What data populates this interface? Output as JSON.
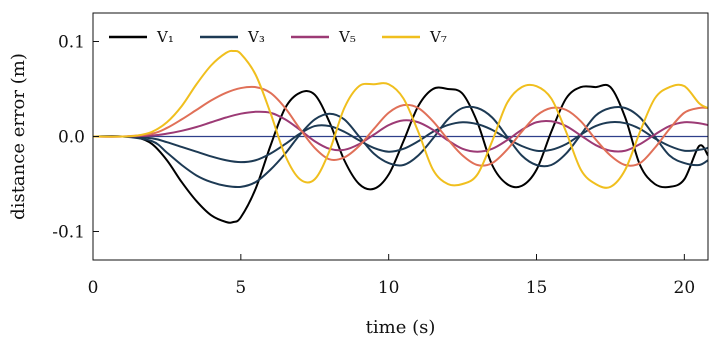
{
  "chart_data": {
    "type": "line",
    "xlabel": "time (s)",
    "ylabel": "distance error (m)",
    "xlim": [
      0,
      20.8
    ],
    "ylim": [
      -0.13,
      0.13
    ],
    "x_ticks": [
      0,
      5,
      10,
      15,
      20
    ],
    "x_tick_labels": [
      "0",
      "5",
      "10",
      "15",
      "20"
    ],
    "y_ticks": [
      -0.1,
      0.0,
      0.1
    ],
    "y_tick_labels": [
      "-0.1",
      "0.0",
      "0.1"
    ],
    "grid": false,
    "legend": {
      "placement": "top-left",
      "orientation": "horizontal"
    },
    "reference_line": {
      "y": 0,
      "color": "#2e3f8a"
    },
    "series": [
      {
        "name": "V₁",
        "color": "#000000",
        "in_legend": true,
        "x": [
          0,
          1,
          1.5,
          2,
          2.5,
          3,
          3.5,
          4,
          4.5,
          4.75,
          5,
          5.5,
          6,
          6.5,
          7,
          7.5,
          8,
          8.5,
          9,
          9.5,
          10,
          10.5,
          11,
          11.5,
          12,
          12.5,
          13,
          13.5,
          14,
          14.5,
          15,
          15.5,
          16,
          16.5,
          17,
          17.5,
          18,
          18.5,
          19,
          19.5,
          20,
          20.5,
          20.8
        ],
        "y": [
          0,
          0,
          -0.001,
          -0.008,
          -0.025,
          -0.048,
          -0.068,
          -0.083,
          -0.09,
          -0.09,
          -0.085,
          -0.055,
          -0.01,
          0.03,
          0.046,
          0.044,
          0.015,
          -0.025,
          -0.05,
          -0.055,
          -0.04,
          -0.005,
          0.032,
          0.05,
          0.05,
          0.045,
          0.015,
          -0.03,
          -0.05,
          -0.052,
          -0.035,
          0.005,
          0.04,
          0.052,
          0.052,
          0.052,
          0.02,
          -0.03,
          -0.05,
          -0.053,
          -0.045,
          -0.01,
          -0.02
        ]
      },
      {
        "name": "",
        "color": "#1d3a54",
        "in_legend": false,
        "x": [
          0,
          1,
          2,
          2.5,
          3,
          3.5,
          4,
          4.5,
          5,
          5.5,
          6,
          6.5,
          7,
          7.5,
          8,
          8.5,
          9,
          9.5,
          10,
          10.5,
          11,
          11.5,
          12,
          12.5,
          13,
          13.5,
          14,
          14.5,
          15,
          15.5,
          16,
          16.5,
          17,
          17.5,
          18,
          18.5,
          19,
          19.5,
          20,
          20.5,
          20.8
        ],
        "y": [
          0,
          0,
          -0.005,
          -0.017,
          -0.03,
          -0.041,
          -0.048,
          -0.052,
          -0.053,
          -0.048,
          -0.035,
          -0.018,
          0.002,
          0.018,
          0.024,
          0.018,
          0,
          -0.018,
          -0.028,
          -0.03,
          -0.02,
          -0.002,
          0.018,
          0.03,
          0.03,
          0.02,
          0,
          -0.02,
          -0.03,
          -0.03,
          -0.018,
          0.002,
          0.022,
          0.03,
          0.03,
          0.02,
          0,
          -0.02,
          -0.028,
          -0.03,
          -0.025
        ]
      },
      {
        "name": "V₃",
        "color": "#1d3a54",
        "in_legend": true,
        "x": [
          0,
          1,
          2,
          2.5,
          3,
          3.5,
          4,
          4.5,
          5,
          5.5,
          6,
          6.5,
          7,
          7.5,
          8,
          8.5,
          9,
          9.5,
          10,
          10.5,
          11,
          11.5,
          12,
          12.5,
          13,
          13.5,
          14,
          14.5,
          15,
          15.5,
          16,
          16.5,
          17,
          17.5,
          18,
          18.5,
          19,
          19.5,
          20,
          20.5,
          20.8
        ],
        "y": [
          0,
          0,
          -0.002,
          -0.006,
          -0.011,
          -0.016,
          -0.021,
          -0.025,
          -0.027,
          -0.025,
          -0.018,
          -0.008,
          0.003,
          0.011,
          0.011,
          0.005,
          -0.004,
          -0.012,
          -0.016,
          -0.013,
          -0.005,
          0.005,
          0.012,
          0.015,
          0.013,
          0.007,
          -0.002,
          -0.01,
          -0.015,
          -0.014,
          -0.008,
          0.002,
          0.011,
          0.015,
          0.014,
          0.008,
          -0.002,
          -0.01,
          -0.015,
          -0.014,
          -0.012
        ]
      },
      {
        "name": "V₅",
        "color": "#9c3a75",
        "in_legend": true,
        "x": [
          0,
          1,
          2,
          2.5,
          3,
          3.5,
          4,
          4.5,
          5,
          5.5,
          6,
          6.5,
          7,
          7.5,
          8,
          8.5,
          9,
          9.5,
          10,
          10.5,
          11,
          11.5,
          12,
          12.5,
          13,
          13.5,
          14,
          14.5,
          15,
          15.5,
          16,
          16.5,
          17,
          17.5,
          18,
          18.5,
          19,
          19.5,
          20,
          20.5,
          20.8
        ],
        "y": [
          0,
          0,
          0.001,
          0.003,
          0.006,
          0.01,
          0.015,
          0.02,
          0.024,
          0.026,
          0.025,
          0.018,
          0.007,
          -0.005,
          -0.013,
          -0.014,
          -0.008,
          0.002,
          0.012,
          0.017,
          0.015,
          0.007,
          -0.004,
          -0.013,
          -0.016,
          -0.013,
          -0.004,
          0.007,
          0.015,
          0.016,
          0.011,
          0.001,
          -0.009,
          -0.015,
          -0.015,
          -0.008,
          0.002,
          0.011,
          0.015,
          0.014,
          0.012
        ]
      },
      {
        "name": "",
        "color": "#e07058",
        "in_legend": false,
        "x": [
          0,
          1,
          2,
          2.5,
          3,
          3.5,
          4,
          4.5,
          5,
          5.5,
          6,
          6.5,
          7,
          7.5,
          8,
          8.5,
          9,
          9.5,
          10,
          10.5,
          11,
          11.5,
          12,
          12.5,
          13,
          13.5,
          14,
          14.5,
          15,
          15.5,
          16,
          16.5,
          17,
          17.5,
          18,
          18.5,
          19,
          19.5,
          20,
          20.5,
          20.8
        ],
        "y": [
          0,
          0,
          0.003,
          0.009,
          0.018,
          0.028,
          0.038,
          0.046,
          0.051,
          0.052,
          0.046,
          0.03,
          0.008,
          -0.012,
          -0.024,
          -0.022,
          -0.01,
          0.008,
          0.025,
          0.033,
          0.03,
          0.016,
          -0.003,
          -0.02,
          -0.03,
          -0.028,
          -0.014,
          0.005,
          0.022,
          0.03,
          0.028,
          0.016,
          -0.003,
          -0.02,
          -0.03,
          -0.028,
          -0.012,
          0.008,
          0.025,
          0.03,
          0.03
        ]
      },
      {
        "name": "V₇",
        "color": "#f0bf1e",
        "in_legend": true,
        "x": [
          0,
          1,
          1.5,
          2,
          2.5,
          3,
          3.5,
          4,
          4.5,
          4.75,
          5,
          5.5,
          6,
          6.5,
          7,
          7.5,
          8,
          8.5,
          9,
          9.5,
          10,
          10.5,
          11,
          11.5,
          12,
          12.5,
          13,
          13.5,
          14,
          14.5,
          15,
          15.5,
          16,
          16.5,
          17,
          17.5,
          18,
          18.5,
          19,
          19.5,
          20,
          20.5,
          20.8
        ],
        "y": [
          0,
          0,
          0.001,
          0.005,
          0.015,
          0.032,
          0.055,
          0.075,
          0.088,
          0.09,
          0.087,
          0.065,
          0.025,
          -0.02,
          -0.045,
          -0.045,
          -0.015,
          0.03,
          0.053,
          0.055,
          0.055,
          0.04,
          0.005,
          -0.035,
          -0.05,
          -0.05,
          -0.04,
          -0.005,
          0.035,
          0.052,
          0.053,
          0.04,
          0.005,
          -0.035,
          -0.05,
          -0.053,
          -0.035,
          0.005,
          0.04,
          0.052,
          0.053,
          0.035,
          0.03
        ]
      }
    ]
  }
}
